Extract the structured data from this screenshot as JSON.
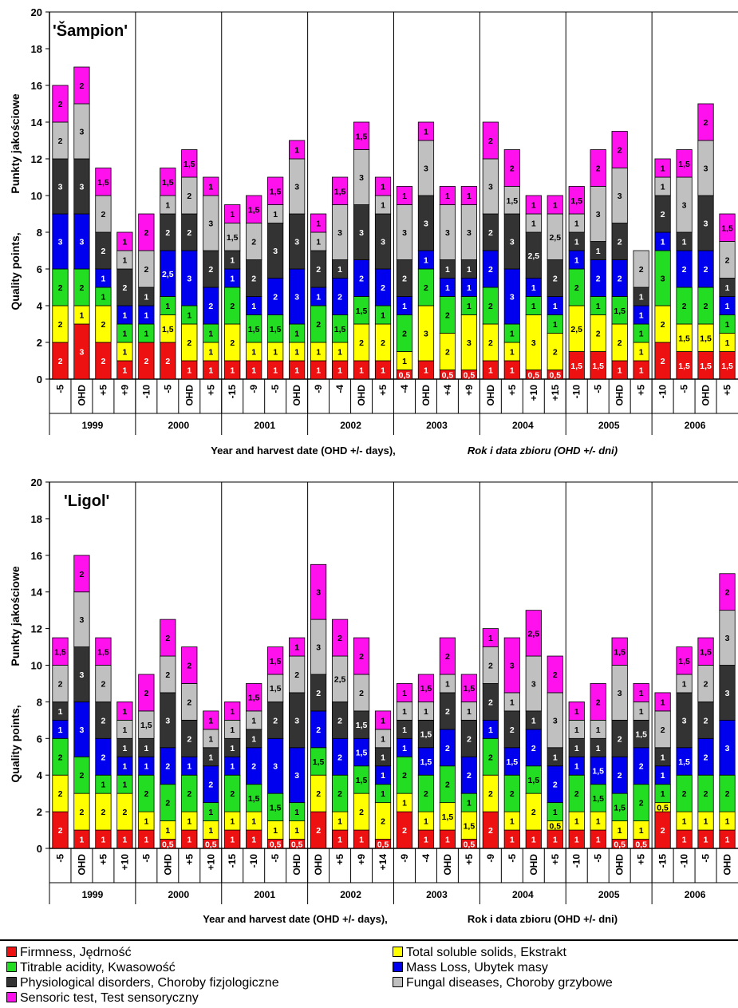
{
  "chart_data": [
    {
      "type": "bar",
      "stacked": true,
      "title": "'Šampion'",
      "ylabel": "Quality points,",
      "ylabel2": "Punkty jakościowe",
      "xlabel": "Year and harvest date (OHD +/- days),",
      "xlabel2": "Rok i data zbioru (OHD +/- dni)",
      "ylim": [
        0,
        20
      ],
      "yticks": [
        "0",
        "2",
        "4",
        "6",
        "8",
        "10",
        "12",
        "14",
        "16",
        "18",
        "20"
      ],
      "groups": [
        {
          "name": "1999",
          "categories": [
            "-5",
            "OHD",
            "+5",
            "+9"
          ]
        },
        {
          "name": "2000",
          "categories": [
            "-10",
            "-5",
            "OHD",
            "+5"
          ]
        },
        {
          "name": "2001",
          "categories": [
            "-15",
            "-9",
            "-5",
            "OHD"
          ]
        },
        {
          "name": "2002",
          "categories": [
            "-9",
            "-4",
            "OHD",
            "+5"
          ]
        },
        {
          "name": "2003",
          "categories": [
            "-4",
            "OHD",
            "+4",
            "+9"
          ]
        },
        {
          "name": "2004",
          "categories": [
            "OHD",
            "+5",
            "+10",
            "+15"
          ]
        },
        {
          "name": "2005",
          "categories": [
            "-10",
            "-5",
            "OHD",
            "+5"
          ]
        },
        {
          "name": "2006",
          "categories": [
            "-10",
            "-5",
            "OHD",
            "+5"
          ]
        }
      ],
      "series": [
        {
          "name": "Firmness, Jędrność",
          "values": [
            2,
            3,
            2,
            1,
            2,
            2,
            1,
            1,
            1,
            1,
            1,
            1,
            1,
            1,
            1,
            1,
            0.5,
            1,
            0.5,
            0.5,
            1,
            1,
            0.5,
            0.5,
            1.5,
            1.5,
            1,
            1,
            2,
            1.5,
            1.5,
            1.5
          ]
        },
        {
          "name": "Total soluble solids, Ekstrakt",
          "values": [
            2,
            1,
            2,
            1,
            0,
            1.5,
            2,
            1,
            2,
            1,
            1,
            1,
            1,
            1,
            2,
            2,
            1,
            3,
            2,
            3,
            2,
            1,
            3,
            2,
            2.5,
            2,
            2,
            1,
            2,
            1.5,
            1.5,
            1
          ]
        },
        {
          "name": "Titrable acidity, Kwasowość",
          "values": [
            2,
            2,
            1,
            1,
            1,
            1,
            1,
            1,
            2,
            1.5,
            1.5,
            1,
            2,
            1.5,
            1.5,
            1,
            2,
            2,
            2,
            1,
            2,
            1,
            1,
            1,
            2,
            1,
            1.5,
            1,
            3,
            2,
            2,
            1
          ]
        },
        {
          "name": "Mass Loss, Ubytek masy",
          "values": [
            3,
            3,
            1,
            1,
            1,
            2.5,
            3,
            2,
            1,
            1,
            2,
            3,
            1,
            2,
            2,
            2,
            1,
            1,
            1,
            1,
            2,
            3,
            1,
            1,
            1,
            2,
            2,
            1,
            1,
            2,
            2,
            1
          ]
        },
        {
          "name": "Physiological disorders, Choroby fizjologiczne",
          "values": [
            3,
            3,
            2,
            2,
            1,
            2,
            2,
            2,
            1,
            2,
            3,
            3,
            2,
            1,
            3,
            3,
            2,
            3,
            1,
            1,
            2,
            3,
            2.5,
            2,
            1,
            1,
            2,
            1,
            2,
            1,
            3,
            1
          ]
        },
        {
          "name": "Fungal diseases, Choroby grzybowe",
          "values": [
            2,
            3,
            2,
            1,
            2,
            1,
            2,
            3,
            1.5,
            2,
            1,
            3,
            1,
            3,
            3,
            1,
            3,
            3,
            3,
            3,
            3,
            1.5,
            1,
            2.5,
            1,
            3,
            3,
            2,
            1,
            3,
            3,
            2
          ]
        },
        {
          "name": "Sensoric test, Test sensoryczny",
          "values": [
            2,
            2,
            1.5,
            1,
            2,
            1.5,
            1.5,
            1,
            1,
            1.5,
            1.5,
            1,
            1,
            1.5,
            1.5,
            1,
            1,
            1,
            1,
            1,
            2,
            2,
            1,
            1,
            1.5,
            2,
            2,
            0,
            1,
            1.5,
            2,
            1.5
          ]
        }
      ],
      "value_labels": [
        [
          "2",
          "3",
          "2",
          "1",
          "2",
          "2",
          "1",
          "1",
          "1",
          "1",
          "1",
          "1",
          "1",
          "1",
          "1",
          "1",
          "0,5",
          "1",
          "0,5",
          "0,5",
          "1",
          "1",
          "0,5",
          "0,5",
          "1,5",
          "1,5",
          "1",
          "1",
          "2",
          "1,5",
          "1,5",
          "1,5"
        ],
        [
          "2",
          "1",
          "2",
          "1",
          "",
          "1,5",
          "2",
          "1",
          "2",
          "1",
          "1",
          "1",
          "1",
          "1",
          "2",
          "2",
          "1",
          "3",
          "2",
          "3",
          "2",
          "1",
          "3",
          "2",
          "2,5",
          "2",
          "2",
          "1",
          "2",
          "1,5",
          "1,5",
          "1"
        ],
        [
          "2",
          "2",
          "1",
          "1",
          "1",
          "1",
          "1",
          "1",
          "2",
          "1,5",
          "1,5",
          "1",
          "2",
          "1,5",
          "1,5",
          "1",
          "2",
          "2",
          "2",
          "1",
          "2",
          "1",
          "1",
          "1",
          "2",
          "1",
          "1,5",
          "1",
          "3",
          "2",
          "2",
          "1"
        ],
        [
          "3",
          "3",
          "1",
          "1",
          "1",
          "2,5",
          "3",
          "2",
          "1",
          "1",
          "2",
          "3",
          "1",
          "2",
          "2",
          "2",
          "1",
          "1",
          "1",
          "1",
          "2",
          "3",
          "1",
          "1",
          "1",
          "2",
          "2",
          "1",
          "1",
          "2",
          "2",
          "1"
        ],
        [
          "3",
          "3",
          "2",
          "2",
          "1",
          "2",
          "2",
          "2",
          "1",
          "2",
          "3",
          "3",
          "2",
          "1",
          "3",
          "3",
          "2",
          "3",
          "1",
          "1",
          "2",
          "3",
          "2,5",
          "2",
          "1",
          "1",
          "2",
          "1",
          "2",
          "1",
          "3",
          "1"
        ],
        [
          "2",
          "3",
          "2",
          "1",
          "2",
          "1",
          "2",
          "3",
          "1,5",
          "2",
          "1",
          "3",
          "1",
          "3",
          "3",
          "1",
          "3",
          "3",
          "3",
          "3",
          "3",
          "1,5",
          "1",
          "2,5",
          "1",
          "3",
          "3",
          "2",
          "1",
          "3",
          "3",
          "2"
        ],
        [
          "2",
          "2",
          "1,5",
          "1",
          "2",
          "1,5",
          "1,5",
          "1",
          "1",
          "1,5",
          "1,5",
          "1",
          "1",
          "1,5",
          "1,5",
          "1",
          "1",
          "1",
          "1",
          "1",
          "2",
          "2",
          "1",
          "1",
          "1,5",
          "2",
          "2",
          "",
          "1",
          "1,5",
          "2",
          "1,5"
        ]
      ]
    },
    {
      "type": "bar",
      "stacked": true,
      "title": "'Ligol'",
      "ylabel": "Quality points,",
      "ylabel2": "Punkty jakościowe",
      "xlabel": "Year and harvest date (OHD +/- days),",
      "xlabel2": "Rok i data zbioru (OHD +/- dni)",
      "ylim": [
        0,
        20
      ],
      "yticks": [
        "0",
        "2",
        "4",
        "6",
        "8",
        "10",
        "12",
        "14",
        "16",
        "18",
        "20"
      ],
      "groups": [
        {
          "name": "1999",
          "categories": [
            "-5",
            "OHD",
            "+5",
            "+10"
          ]
        },
        {
          "name": "2000",
          "categories": [
            "-5",
            "OHD",
            "+5",
            "+10"
          ]
        },
        {
          "name": "2001",
          "categories": [
            "-15",
            "-10",
            "-5",
            "OHD"
          ]
        },
        {
          "name": "2002",
          "categories": [
            "OHD",
            "+5",
            "+9",
            "+14"
          ]
        },
        {
          "name": "2003",
          "categories": [
            "-9",
            "-4",
            "OHD",
            "+5"
          ]
        },
        {
          "name": "2004",
          "categories": [
            "-9",
            "-5",
            "OHD",
            "+5"
          ]
        },
        {
          "name": "2005",
          "categories": [
            "-10",
            "-5",
            "OHD",
            "+5"
          ]
        },
        {
          "name": "2006",
          "categories": [
            "-15",
            "-10",
            "-5",
            "OHD"
          ]
        }
      ],
      "series": [
        {
          "name": "Firmness, Jędrność",
          "values": [
            2,
            1,
            1,
            1,
            1,
            0.5,
            1,
            0.5,
            1,
            1,
            0.5,
            0.5,
            2,
            1,
            1,
            0.5,
            2,
            1,
            1,
            0.5,
            2,
            1,
            1,
            1,
            1,
            1,
            0.5,
            0.5,
            2,
            1,
            1,
            1
          ]
        },
        {
          "name": "Total soluble solids, Ekstrakt",
          "values": [
            2,
            2,
            2,
            2,
            1,
            1,
            1,
            1,
            1,
            1,
            1,
            1,
            2,
            1,
            2,
            2,
            1,
            1,
            1.5,
            1.5,
            2,
            1,
            2,
            0.5,
            1,
            1,
            1,
            1,
            0.5,
            1,
            1,
            1
          ]
        },
        {
          "name": "Titrable acidity, Kwasowość",
          "values": [
            2,
            2,
            1,
            1,
            2,
            2,
            2,
            1,
            2,
            1.5,
            1.5,
            1,
            1.5,
            2,
            1.5,
            1,
            2,
            2,
            2,
            1,
            2,
            2,
            1.5,
            1,
            2,
            1.5,
            1.5,
            2,
            1,
            2,
            2,
            2
          ]
        },
        {
          "name": "Mass Loss, Ubytek masy",
          "values": [
            1,
            3,
            2,
            1,
            1,
            2,
            1,
            2,
            1,
            2,
            3,
            3,
            2,
            2,
            1.5,
            1,
            1,
            1.5,
            2,
            2,
            1,
            1.5,
            2,
            2,
            1,
            1.5,
            2,
            2,
            1,
            1.5,
            2,
            3
          ]
        },
        {
          "name": "Physiological disorders, Choroby fizjologiczne",
          "values": [
            1,
            3,
            2,
            1,
            1,
            3,
            2,
            1,
            1,
            1,
            2,
            3,
            2,
            2,
            1.5,
            1,
            1,
            1.5,
            2,
            2,
            2,
            2,
            1,
            1,
            1,
            1,
            2,
            1.5,
            1,
            3,
            2,
            3
          ]
        },
        {
          "name": "Fungal diseases, Choroby grzybowe",
          "values": [
            2,
            3,
            2,
            1,
            1.5,
            2,
            2,
            1,
            1,
            1,
            1.5,
            2,
            3,
            2.5,
            2,
            1,
            1,
            1,
            1,
            1,
            2,
            1,
            3,
            3,
            1,
            1,
            3,
            1,
            2,
            1,
            2,
            3
          ]
        },
        {
          "name": "Sensoric test, Test sensoryczny",
          "values": [
            1.5,
            2,
            1.5,
            1,
            2,
            2,
            2,
            1,
            1,
            1.5,
            1.5,
            1,
            3,
            2,
            2,
            1,
            1,
            1.5,
            2,
            1.5,
            1,
            3,
            2.5,
            2,
            1,
            2,
            1.5,
            1,
            1,
            1.5,
            1.5,
            2
          ]
        }
      ],
      "value_labels": [
        [
          "2",
          "1",
          "1",
          "1",
          "1",
          "0,5",
          "1",
          "0,5",
          "1",
          "1",
          "0,5",
          "0,5",
          "2",
          "1",
          "1",
          "0,5",
          "2",
          "1",
          "1",
          "0,5",
          "2",
          "1",
          "1",
          "1",
          "1",
          "1",
          "0,5",
          "0,5",
          "2",
          "1",
          "1",
          "1"
        ],
        [
          "2",
          "2",
          "2",
          "2",
          "1",
          "1",
          "1",
          "1",
          "1",
          "1",
          "1",
          "1",
          "2",
          "1",
          "2",
          "2",
          "1",
          "1",
          "1,5",
          "1,5",
          "2",
          "1",
          "2",
          "0,5",
          "1",
          "1",
          "1",
          "1",
          "0,5",
          "1",
          "1",
          "1"
        ],
        [
          "2",
          "2",
          "1",
          "1",
          "2",
          "2",
          "2",
          "1",
          "2",
          "1,5",
          "1,5",
          "1",
          "1,5",
          "2",
          "1,5",
          "1",
          "2",
          "2",
          "2",
          "1",
          "2",
          "2",
          "1,5",
          "1",
          "2",
          "1,5",
          "1,5",
          "2",
          "1",
          "2",
          "2",
          "2"
        ],
        [
          "1",
          "3",
          "2",
          "1",
          "1",
          "2",
          "1",
          "2",
          "1",
          "2",
          "3",
          "3",
          "2",
          "2",
          "1,5",
          "1",
          "1",
          "1,5",
          "2",
          "2",
          "1",
          "1,5",
          "2",
          "2",
          "1",
          "1,5",
          "2",
          "2",
          "1",
          "1,5",
          "2",
          "3"
        ],
        [
          "1",
          "3",
          "2",
          "1",
          "1",
          "3",
          "2",
          "1",
          "1",
          "1",
          "2",
          "3",
          "2",
          "2",
          "1,5",
          "1",
          "1",
          "1,5",
          "2",
          "2",
          "2",
          "2",
          "1",
          "1",
          "1",
          "1",
          "2",
          "1,5",
          "1",
          "3",
          "2",
          "3"
        ],
        [
          "2",
          "3",
          "2",
          "1",
          "1,5",
          "2",
          "2",
          "1",
          "1",
          "1",
          "1,5",
          "2",
          "3",
          "2,5",
          "2",
          "1",
          "1",
          "1",
          "1",
          "1",
          "2",
          "1",
          "3",
          "3",
          "1",
          "1",
          "3",
          "1",
          "2",
          "1",
          "2",
          "3"
        ],
        [
          "1,5",
          "2",
          "1,5",
          "1",
          "2",
          "2",
          "2",
          "1",
          "1",
          "1,5",
          "1,5",
          "1",
          "3",
          "2",
          "2",
          "1",
          "1",
          "1,5",
          "2",
          "1,5",
          "1",
          "3",
          "2,5",
          "2",
          "1",
          "2",
          "1,5",
          "1",
          "1",
          "1,5",
          "1,5",
          "2"
        ]
      ]
    }
  ],
  "colors": [
    "#ee1111",
    "#ffff00",
    "#22dd22",
    "#0000ee",
    "#333333",
    "#c0c0c0",
    "#ff11ee"
  ],
  "legend": {
    "items": [
      "Firmness, Jędrność",
      "Total soluble solids, Ekstrakt",
      "Titrable acidity, Kwasowość",
      "Mass Loss, Ubytek masy",
      "Physiological disorders, Choroby fizjologiczne",
      "Fungal diseases, Choroby grzybowe",
      "Sensoric test, Test sensoryczny"
    ]
  }
}
